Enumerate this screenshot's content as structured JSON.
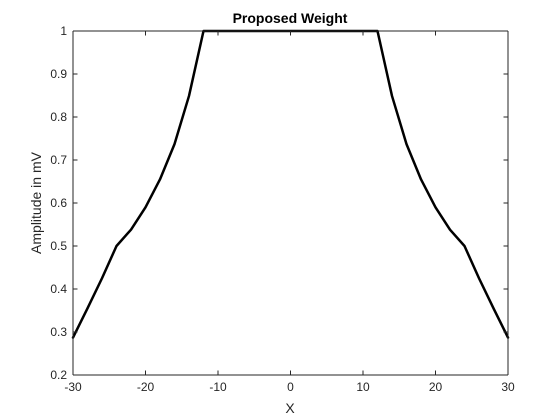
{
  "chart_data": {
    "type": "line",
    "title": "Proposed Weight",
    "xlabel": "X",
    "ylabel": "Amplitude in mV",
    "xlim": [
      -30,
      30
    ],
    "ylim": [
      0.2,
      1
    ],
    "xticks": [
      -30,
      -20,
      -10,
      0,
      10,
      20,
      30
    ],
    "yticks": [
      0.2,
      0.3,
      0.4,
      0.5,
      0.6,
      0.7,
      0.8,
      0.9,
      1
    ],
    "xtick_labels": [
      "-30",
      "-20",
      "-10",
      "0",
      "10",
      "20",
      "30"
    ],
    "ytick_labels": [
      "0.2",
      "0.3",
      "0.4",
      "0.5",
      "0.6",
      "0.7",
      "0.8",
      "0.9",
      "1"
    ],
    "grid": false,
    "series": [
      {
        "x": [
          -30,
          -28,
          -26,
          -24,
          -22,
          -20,
          -18,
          -16,
          -14,
          -12,
          -10,
          -5,
          0,
          5,
          10,
          12,
          14,
          16,
          18,
          20,
          22,
          24,
          26,
          28,
          30
        ],
        "y": [
          0.287,
          0.355,
          0.425,
          0.5,
          0.538,
          0.59,
          0.655,
          0.737,
          0.849,
          1.0,
          1.0,
          1.0,
          1.0,
          1.0,
          1.0,
          1.0,
          0.849,
          0.737,
          0.655,
          0.59,
          0.538,
          0.5,
          0.425,
          0.355,
          0.287
        ],
        "color": "#000000"
      }
    ]
  }
}
